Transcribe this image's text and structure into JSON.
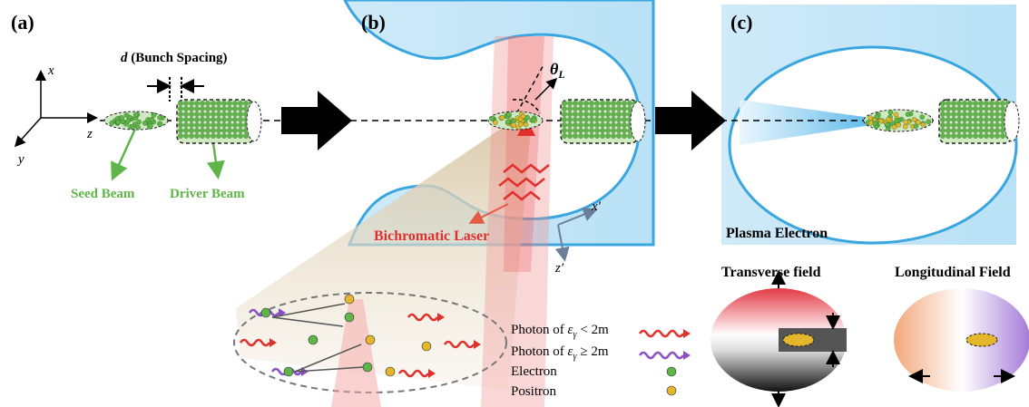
{
  "panel_a": {
    "label": "(a)",
    "spacing_symbol": "d",
    "spacing_label": "(Bunch Spacing)",
    "axes": [
      "x",
      "z",
      "y"
    ],
    "seed_beam": "Seed Beam",
    "driver_beam": "Driver Beam"
  },
  "panel_b": {
    "label": "(b)",
    "angle_symbol": "θ",
    "angle_sub": "L",
    "laser": "Bichromatic Laser",
    "axes": [
      "x′",
      "z′"
    ]
  },
  "panel_c": {
    "label": "(c)",
    "plasma": "Plasma Electron",
    "transverse": "Transverse field",
    "longitudinal": "Longitudinal Field"
  },
  "legend": [
    {
      "prefix": "Photon of",
      "symbol": "ε",
      "sub": "γ",
      "condition": "< 2m"
    },
    {
      "prefix": "Photon of",
      "symbol": "ε",
      "sub": "γ",
      "condition": "≥ 2m"
    },
    {
      "prefix": "Electron"
    },
    {
      "prefix": "Positron"
    }
  ]
}
